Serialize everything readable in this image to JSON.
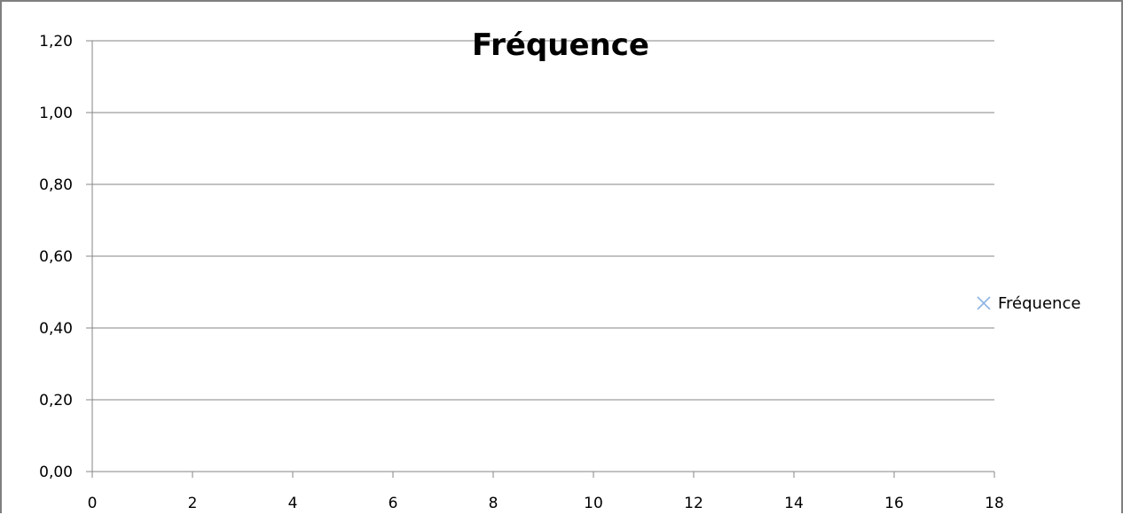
{
  "chart_data": {
    "type": "scatter",
    "title": "Fréquence",
    "xlabel": "",
    "ylabel": "",
    "xlim": [
      0,
      18
    ],
    "ylim": [
      0,
      1.2
    ],
    "x_ticks": [
      "0",
      "2",
      "4",
      "6",
      "8",
      "10",
      "12",
      "14",
      "16",
      "18"
    ],
    "y_ticks": [
      "0,00",
      "0,20",
      "0,40",
      "0,60",
      "0,80",
      "1,00",
      "1,20"
    ],
    "grid": "horizontal",
    "legend_position": "right",
    "series": [
      {
        "name": "Fréquence",
        "marker": "x",
        "color": "#8eb4e3",
        "points": []
      }
    ]
  }
}
